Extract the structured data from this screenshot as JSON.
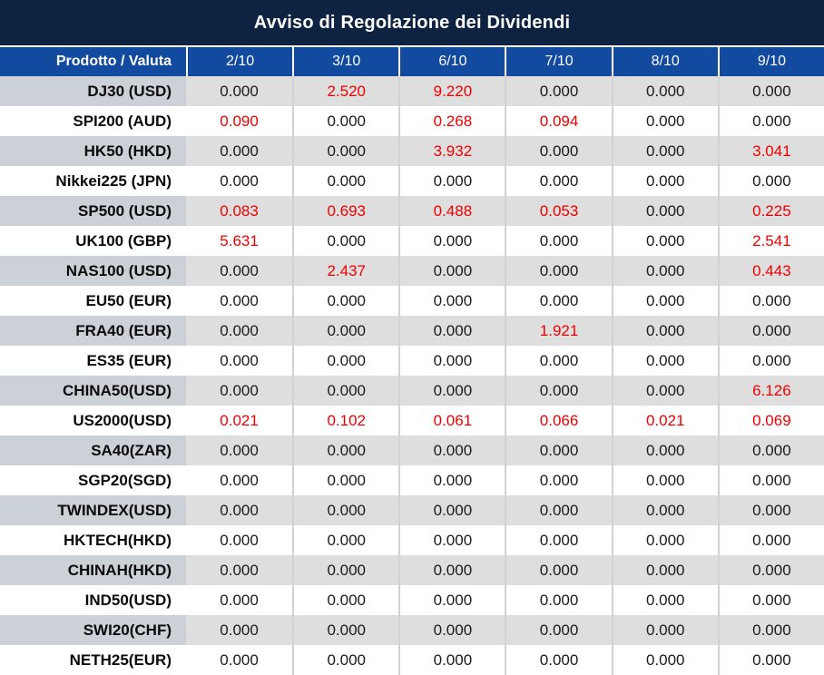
{
  "title": "Avviso di Regolazione dei Dividendi",
  "colors": {
    "title_bar_bg": "#0e2342",
    "header_bg": "#114a9e",
    "negative_red": "#f00000",
    "shaded_row_bg": "#dedede",
    "shaded_product_bg": "#ccd1d8",
    "header_text": "#ffffff"
  },
  "table": {
    "product_header": "Prodotto / Valuta",
    "date_headers": [
      "2/10",
      "3/10",
      "6/10",
      "7/10",
      "8/10",
      "9/10"
    ],
    "rows": [
      {
        "product": "DJ30 (USD)",
        "values": [
          "0.000",
          "2.520",
          "9.220",
          "0.000",
          "0.000",
          "0.000"
        ],
        "red": [
          false,
          true,
          true,
          false,
          false,
          false
        ]
      },
      {
        "product": "SPI200 (AUD)",
        "values": [
          "0.090",
          "0.000",
          "0.268",
          "0.094",
          "0.000",
          "0.000"
        ],
        "red": [
          true,
          false,
          true,
          true,
          false,
          false
        ]
      },
      {
        "product": "HK50 (HKD)",
        "values": [
          "0.000",
          "0.000",
          "3.932",
          "0.000",
          "0.000",
          "3.041"
        ],
        "red": [
          false,
          false,
          true,
          false,
          false,
          true
        ]
      },
      {
        "product": "Nikkei225 (JPN)",
        "values": [
          "0.000",
          "0.000",
          "0.000",
          "0.000",
          "0.000",
          "0.000"
        ],
        "red": [
          false,
          false,
          false,
          false,
          false,
          false
        ]
      },
      {
        "product": "SP500 (USD)",
        "values": [
          "0.083",
          "0.693",
          "0.488",
          "0.053",
          "0.000",
          "0.225"
        ],
        "red": [
          true,
          true,
          true,
          true,
          false,
          true
        ]
      },
      {
        "product": "UK100 (GBP)",
        "values": [
          "5.631",
          "0.000",
          "0.000",
          "0.000",
          "0.000",
          "2.541"
        ],
        "red": [
          true,
          false,
          false,
          false,
          false,
          true
        ]
      },
      {
        "product": "NAS100 (USD)",
        "values": [
          "0.000",
          "2.437",
          "0.000",
          "0.000",
          "0.000",
          "0.443"
        ],
        "red": [
          false,
          true,
          false,
          false,
          false,
          true
        ]
      },
      {
        "product": "EU50 (EUR)",
        "values": [
          "0.000",
          "0.000",
          "0.000",
          "0.000",
          "0.000",
          "0.000"
        ],
        "red": [
          false,
          false,
          false,
          false,
          false,
          false
        ]
      },
      {
        "product": "FRA40 (EUR)",
        "values": [
          "0.000",
          "0.000",
          "0.000",
          "1.921",
          "0.000",
          "0.000"
        ],
        "red": [
          false,
          false,
          false,
          true,
          false,
          false
        ]
      },
      {
        "product": "ES35 (EUR)",
        "values": [
          "0.000",
          "0.000",
          "0.000",
          "0.000",
          "0.000",
          "0.000"
        ],
        "red": [
          false,
          false,
          false,
          false,
          false,
          false
        ]
      },
      {
        "product": "CHINA50(USD)",
        "values": [
          "0.000",
          "0.000",
          "0.000",
          "0.000",
          "0.000",
          "6.126"
        ],
        "red": [
          false,
          false,
          false,
          false,
          false,
          true
        ]
      },
      {
        "product": "US2000(USD)",
        "values": [
          "0.021",
          "0.102",
          "0.061",
          "0.066",
          "0.021",
          "0.069"
        ],
        "red": [
          true,
          true,
          true,
          true,
          true,
          true
        ]
      },
      {
        "product": "SA40(ZAR)",
        "values": [
          "0.000",
          "0.000",
          "0.000",
          "0.000",
          "0.000",
          "0.000"
        ],
        "red": [
          false,
          false,
          false,
          false,
          false,
          false
        ]
      },
      {
        "product": "SGP20(SGD)",
        "values": [
          "0.000",
          "0.000",
          "0.000",
          "0.000",
          "0.000",
          "0.000"
        ],
        "red": [
          false,
          false,
          false,
          false,
          false,
          false
        ]
      },
      {
        "product": "TWINDEX(USD)",
        "values": [
          "0.000",
          "0.000",
          "0.000",
          "0.000",
          "0.000",
          "0.000"
        ],
        "red": [
          false,
          false,
          false,
          false,
          false,
          false
        ]
      },
      {
        "product": "HKTECH(HKD)",
        "values": [
          "0.000",
          "0.000",
          "0.000",
          "0.000",
          "0.000",
          "0.000"
        ],
        "red": [
          false,
          false,
          false,
          false,
          false,
          false
        ]
      },
      {
        "product": "CHINAH(HKD)",
        "values": [
          "0.000",
          "0.000",
          "0.000",
          "0.000",
          "0.000",
          "0.000"
        ],
        "red": [
          false,
          false,
          false,
          false,
          false,
          false
        ]
      },
      {
        "product": "IND50(USD)",
        "values": [
          "0.000",
          "0.000",
          "0.000",
          "0.000",
          "0.000",
          "0.000"
        ],
        "red": [
          false,
          false,
          false,
          false,
          false,
          false
        ]
      },
      {
        "product": "SWI20(CHF)",
        "values": [
          "0.000",
          "0.000",
          "0.000",
          "0.000",
          "0.000",
          "0.000"
        ],
        "red": [
          false,
          false,
          false,
          false,
          false,
          false
        ]
      },
      {
        "product": "NETH25(EUR)",
        "values": [
          "0.000",
          "0.000",
          "0.000",
          "0.000",
          "0.000",
          "0.000"
        ],
        "red": [
          false,
          false,
          false,
          false,
          false,
          false
        ]
      }
    ]
  }
}
